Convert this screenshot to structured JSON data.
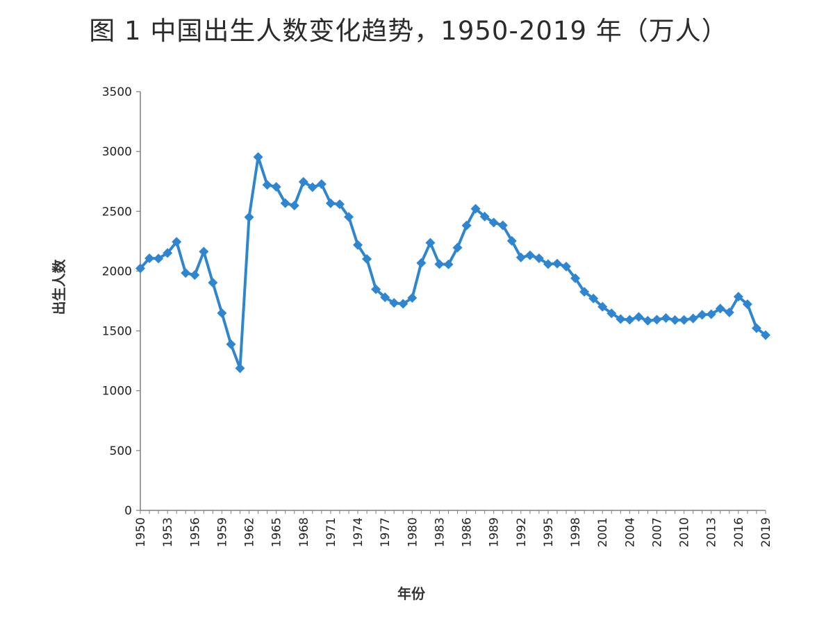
{
  "chart_data": {
    "type": "line",
    "title": "图 1  中国出生人数变化趋势，1950-2019 年（万人）",
    "xlabel": "年份",
    "ylabel": "出生人数",
    "ylim": [
      0,
      3500
    ],
    "yticks": [
      0,
      500,
      1000,
      1500,
      2000,
      2500,
      3000,
      3500
    ],
    "xticks": [
      1950,
      1953,
      1956,
      1959,
      1962,
      1965,
      1968,
      1971,
      1974,
      1977,
      1980,
      1983,
      1986,
      1989,
      1992,
      1995,
      1998,
      2001,
      2004,
      2007,
      2010,
      2013,
      2016,
      2019
    ],
    "grid": false,
    "legend": "none",
    "series_color": "#2e86d1",
    "series": [
      {
        "x": [
          1950,
          1951,
          1952,
          1953,
          1954,
          1955,
          1956,
          1957,
          1958,
          1959,
          1960,
          1961,
          1962,
          1963,
          1964,
          1965,
          1966,
          1967,
          1968,
          1969,
          1970,
          1971,
          1972,
          1973,
          1974,
          1975,
          1976,
          1977,
          1978,
          1979,
          1980,
          1981,
          1982,
          1983,
          1984,
          1985,
          1986,
          1987,
          1988,
          1989,
          1990,
          1991,
          1992,
          1993,
          1994,
          1995,
          1996,
          1997,
          1998,
          1999,
          2000,
          2001,
          2002,
          2003,
          2004,
          2005,
          2006,
          2007,
          2008,
          2009,
          2010,
          2011,
          2012,
          2013,
          2014,
          2015,
          2016,
          2017,
          2018,
          2019
        ],
        "values": [
          2023,
          2107,
          2105,
          2151,
          2245,
          1984,
          1967,
          2163,
          1903,
          1649,
          1389,
          1188,
          2451,
          2954,
          2721,
          2704,
          2568,
          2548,
          2746,
          2701,
          2727,
          2567,
          2559,
          2453,
          2219,
          2101,
          1848,
          1781,
          1734,
          1727,
          1776,
          2068,
          2237,
          2058,
          2056,
          2196,
          2381,
          2521,
          2456,
          2406,
          2383,
          2253,
          2114,
          2132,
          2107,
          2058,
          2063,
          2038,
          1940,
          1827,
          1771,
          1702,
          1647,
          1599,
          1593,
          1617,
          1585,
          1594,
          1608,
          1591,
          1592,
          1604,
          1635,
          1640,
          1687,
          1655,
          1786,
          1723,
          1523,
          1465
        ]
      }
    ]
  }
}
